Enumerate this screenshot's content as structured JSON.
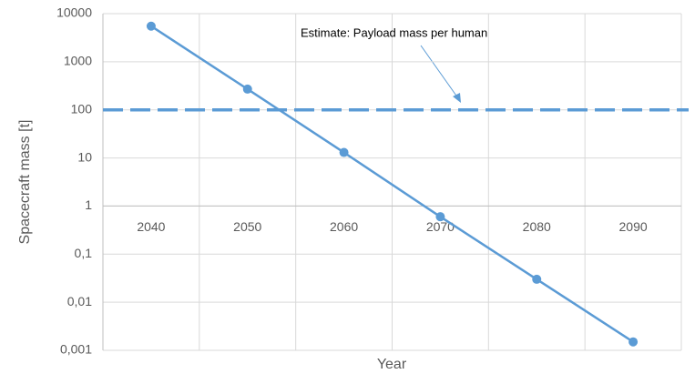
{
  "chart_data": {
    "type": "line",
    "x_label": "Year",
    "y_label": "Spacecraft mass [t]",
    "categories": [
      "2040",
      "2050",
      "2060",
      "2070",
      "2080",
      "2090"
    ],
    "series": [
      {
        "color": "#5b9bd5",
        "values": [
          5500,
          270,
          13,
          0.6,
          0.03,
          0.0015
        ]
      }
    ],
    "reference_line": {
      "value": 100,
      "color": "#5b9bd5",
      "label": "Estimate: Payload mass per human"
    },
    "log_scale": true,
    "ylim": [
      0.001,
      10000
    ],
    "yticks": [
      10000,
      1000,
      100,
      10,
      1,
      {
        "value": 0.1,
        "label": "0,1"
      },
      {
        "value": 0.01,
        "label": "0,01"
      },
      {
        "value": 0.001,
        "label": "0,001"
      }
    ],
    "x_axis_at": 1,
    "grid": true
  }
}
